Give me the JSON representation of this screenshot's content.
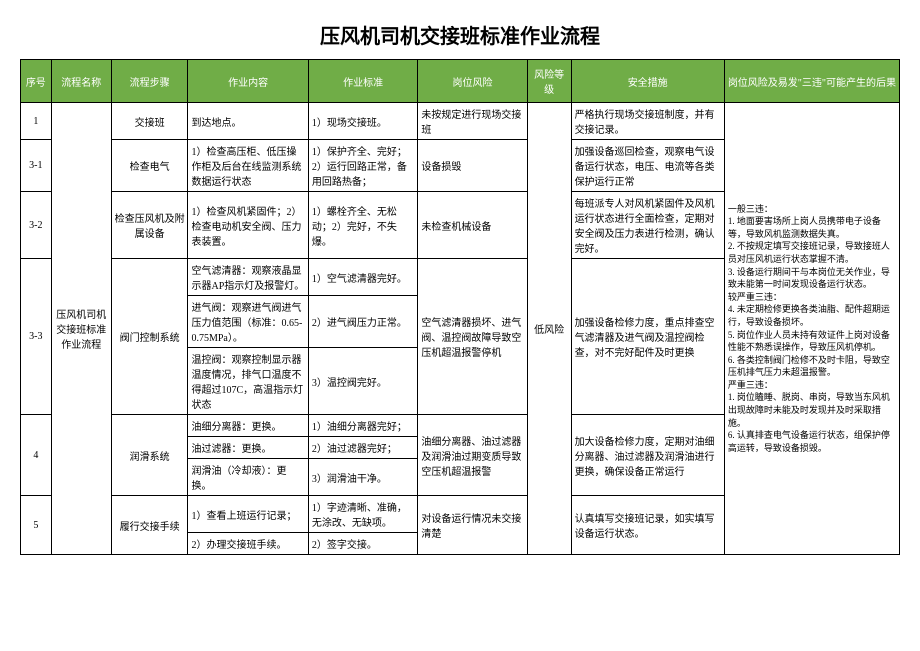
{
  "title": "压风机司机交接班标准作业流程",
  "headers": {
    "seq": "序号",
    "name": "流程名称",
    "step": "流程步骤",
    "content": "作业内容",
    "standard": "作业标准",
    "risk": "岗位风险",
    "level": "风险等级",
    "measure": "安全措施",
    "consequence": "岗位风险及易发\"三违\"可能产生的后果"
  },
  "rows": {
    "r1": {
      "seq": "1",
      "step": "交接班",
      "content": "到达地点。",
      "standard": "1）现场交接班。",
      "risk": "未按规定进行现场交接班",
      "measure": "严格执行现场交接班制度，并有交接记录。"
    },
    "r31": {
      "seq": "3-1",
      "step": "检查电气",
      "content": "1）检查高压柜、低压操作柜及后台在线监测系统数据运行状态",
      "standard": "1）保护齐全、完好；2）运行回路正常，备用回路热备；",
      "risk": "设备损毁",
      "measure": "加强设备巡回检查，观察电气设备运行状态，电压、电流等各类保护运行正常"
    },
    "r32": {
      "seq": "3-2",
      "step": "检查压风机及附属设备",
      "content": "1）检查风机紧固件；2）检查电动机安全阀、压力表装置。",
      "standard": "1）螺栓齐全、无松动；2）完好，不失爆。",
      "risk": "未检查机械设备",
      "measure": "每班派专人对风机紧固件及风机运行状态进行全面检查，定期对安全阀及压力表进行检测，确认完好。"
    },
    "r33": {
      "seq": "3-3",
      "name": "压风机司机交接班标准作业流程",
      "step": "阀门控制系统",
      "content1": "空气滤清器：观察液晶显示器AP指示灯及报警灯。",
      "standard1": "1）空气滤清器完好。",
      "content2": "进气阀：观察进气阀进气压力值范围（标准：0.65-0.75MPa）。",
      "standard2": "2）进气阀压力正常。",
      "content3": "温控阀：观察控制显示器温度情况，排气口温度不得超过107C，高温指示灯状态",
      "standard3": "3）温控阀完好。",
      "risk": "空气滤清器损坏、进气阀、温控阀故障导致空压机超温报警停机",
      "level": "低风险",
      "measure": "加强设备检修力度，重点排查空气滤清器及进气阀及温控阀检查，对不完好配件及时更换"
    },
    "r4": {
      "seq": "4",
      "step": "润滑系统",
      "content1": "油细分离器：更换。",
      "standard1": "1）油细分离器完好；",
      "content2": "油过滤器：更换。",
      "standard2": "2）油过滤器完好；",
      "content3": "润滑油（冷却液）：更换。",
      "standard3": "3）润滑油干净。",
      "risk": "油细分离器、油过滤器及润滑油过期变质导致空压机超温报警",
      "measure": "加大设备检修力度，定期对油细分离器、油过滤器及润滑油进行更换，确保设备正常运行"
    },
    "r5": {
      "seq": "5",
      "step": "履行交接手续",
      "content1": "1）查看上班运行记录；",
      "standard1": "1）字迹清晰、准确，无涂改、无缺项。",
      "content2": "2）办理交接班手续。",
      "standard2": "2）签字交接。",
      "risk": "对设备运行情况未交接清楚",
      "measure": "认真填写交接班记录，如实填写设备运行状态。"
    }
  },
  "consequence": "一般三违：\n1. 地面要害场所上岗人员携带电子设备等，导致风机监测数据失真。\n2. 不按规定填写交接班记录，导致接班人员对压风机运行状态掌握不清。\n3. 设备运行期间干与本岗位无关作业，导致未能第一时间发现设备运行状态。\n较严重三违：\n4. 未定期检修更换各类油脂、配件超期运行，导致设备损坏。\n5. 岗位作业人员未持有效证件上岗对设备性能不熟悉误操作，导致压风机停机。\n6. 各类控制阀门检修不及时卡阻，导致空压机排气压力未超温报警。\n严重三违：\n1. 岗位瞌睡、脱岗、串岗，导致当东风机出现故障时未能及时发现并及时采取措施。\n6. 认真排查电气设备运行状态，组保护停高运转，导致设备损毁。"
}
